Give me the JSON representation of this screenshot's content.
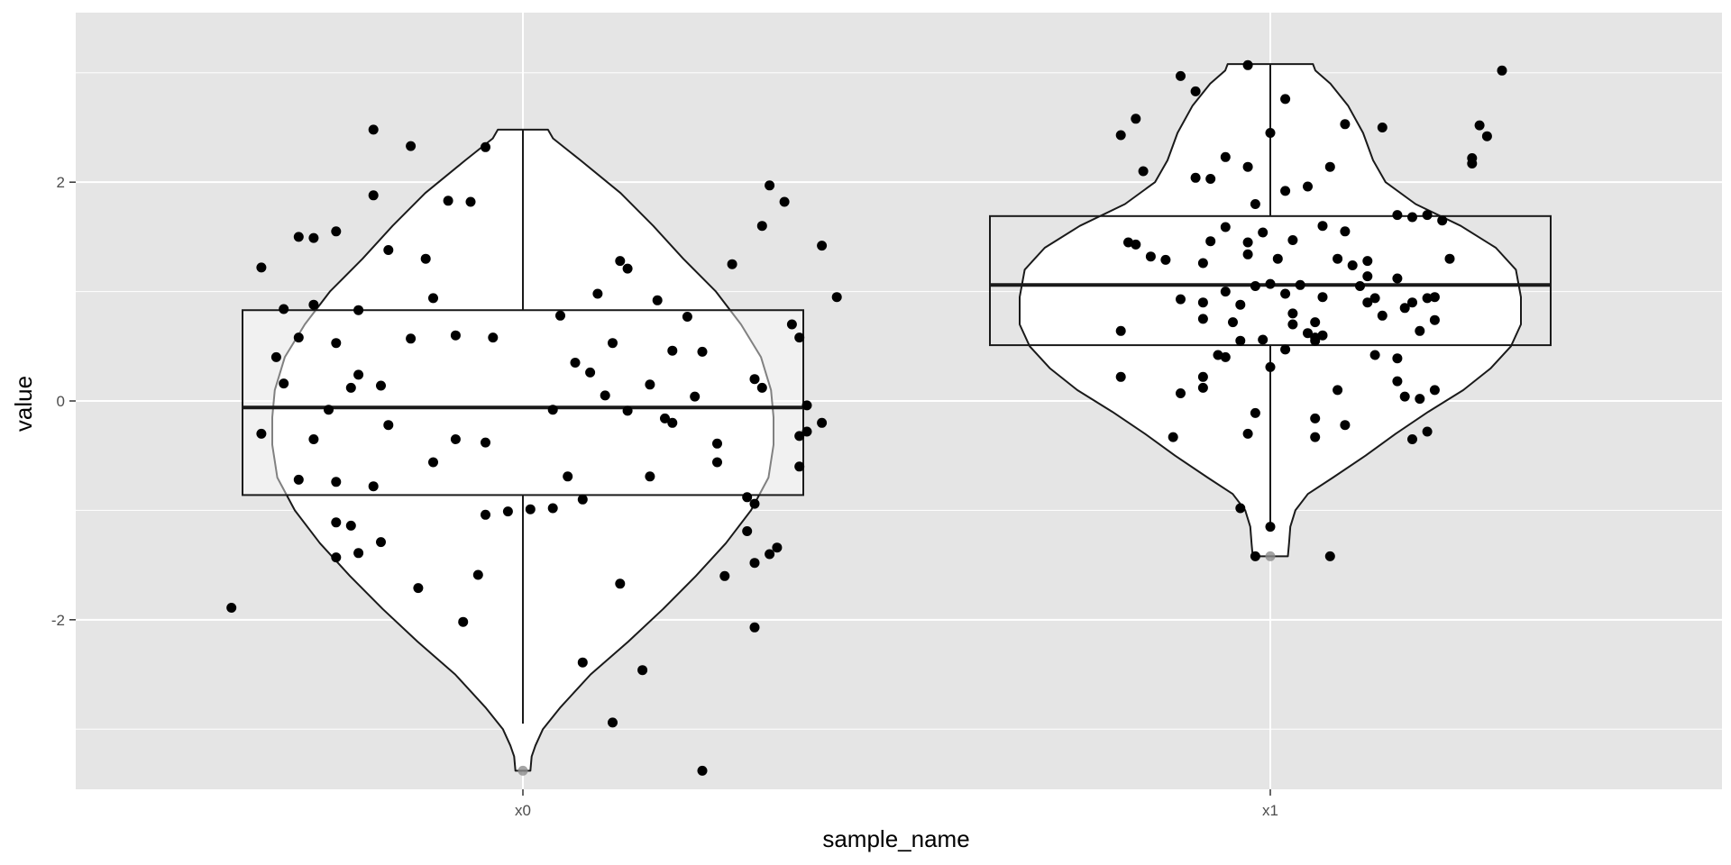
{
  "chart_data": {
    "type": "violin",
    "xlabel": "sample_name",
    "ylabel": "value",
    "categories": [
      "x0",
      "x1"
    ],
    "ylim": [
      -3.55,
      3.55
    ],
    "yticks": [
      -2,
      0,
      2
    ],
    "ytick_labels": [
      "-2",
      "0",
      "2"
    ],
    "grid": true,
    "colors": {
      "panel_bg": "#e5e5e5",
      "grid": "#ffffff",
      "violin_fill": "#ffffff",
      "outline": "#1a1a1a",
      "points": "#000000",
      "box_fill_x0": "rgba(255,255,255,0.45)"
    },
    "groups": [
      {
        "name": "x0",
        "box": {
          "min": -2.95,
          "q1": -0.86,
          "median": -0.06,
          "q3": 0.83,
          "max": 2.48
        },
        "outliers": [
          -3.38
        ],
        "violin_profile": [
          [
            -3.38,
            0.03
          ],
          [
            -3.25,
            0.035
          ],
          [
            -3.15,
            0.05
          ],
          [
            -3.0,
            0.08
          ],
          [
            -2.8,
            0.15
          ],
          [
            -2.5,
            0.27
          ],
          [
            -2.2,
            0.42
          ],
          [
            -1.9,
            0.56
          ],
          [
            -1.6,
            0.69
          ],
          [
            -1.3,
            0.81
          ],
          [
            -1.0,
            0.91
          ],
          [
            -0.7,
            0.98
          ],
          [
            -0.4,
            1.0
          ],
          [
            -0.15,
            1.0
          ],
          [
            0.1,
            0.99
          ],
          [
            0.4,
            0.95
          ],
          [
            0.7,
            0.87
          ],
          [
            1.0,
            0.77
          ],
          [
            1.3,
            0.64
          ],
          [
            1.6,
            0.52
          ],
          [
            1.9,
            0.39
          ],
          [
            2.2,
            0.23
          ],
          [
            2.4,
            0.12
          ],
          [
            2.48,
            0.1
          ]
        ],
        "points": [
          [
            -0.2,
            2.48
          ],
          [
            -0.15,
            2.33
          ],
          [
            -0.05,
            2.32
          ],
          [
            -0.1,
            1.83
          ],
          [
            -0.07,
            1.82
          ],
          [
            -0.2,
            1.88
          ],
          [
            -0.3,
            1.5
          ],
          [
            -0.35,
            1.22
          ],
          [
            -0.25,
            1.55
          ],
          [
            -0.18,
            1.38
          ],
          [
            -0.13,
            1.3
          ],
          [
            -0.32,
            0.84
          ],
          [
            -0.28,
            0.88
          ],
          [
            -0.22,
            0.83
          ],
          [
            -0.12,
            0.94
          ],
          [
            -0.3,
            0.58
          ],
          [
            -0.25,
            0.53
          ],
          [
            -0.33,
            0.4
          ],
          [
            -0.22,
            0.24
          ],
          [
            -0.32,
            0.16
          ],
          [
            -0.23,
            0.12
          ],
          [
            -0.09,
            0.6
          ],
          [
            -0.04,
            0.58
          ],
          [
            0.05,
            0.78
          ],
          [
            0.1,
            0.98
          ],
          [
            0.13,
            1.28
          ],
          [
            0.14,
            1.21
          ],
          [
            0.18,
            0.92
          ],
          [
            0.22,
            0.77
          ],
          [
            0.2,
            0.46
          ],
          [
            0.12,
            0.53
          ],
          [
            0.07,
            0.35
          ],
          [
            0.09,
            0.26
          ],
          [
            0.11,
            0.05
          ],
          [
            0.17,
            0.15
          ],
          [
            0.14,
            -0.09
          ],
          [
            0.19,
            -0.16
          ],
          [
            0.2,
            -0.2
          ],
          [
            0.23,
            0.04
          ],
          [
            0.24,
            0.45
          ],
          [
            0.28,
            1.25
          ],
          [
            0.32,
            1.6
          ],
          [
            0.33,
            1.97
          ],
          [
            0.35,
            1.82
          ],
          [
            0.4,
            1.42
          ],
          [
            0.42,
            0.95
          ],
          [
            0.36,
            0.7
          ],
          [
            0.37,
            0.58
          ],
          [
            0.31,
            0.2
          ],
          [
            0.32,
            0.12
          ],
          [
            0.38,
            -0.04
          ],
          [
            0.4,
            -0.2
          ],
          [
            0.38,
            -0.28
          ],
          [
            0.37,
            -0.32
          ],
          [
            0.37,
            -0.6
          ],
          [
            0.26,
            -0.56
          ],
          [
            0.3,
            -0.88
          ],
          [
            0.31,
            -0.94
          ],
          [
            0.34,
            -1.34
          ],
          [
            0.31,
            -1.48
          ],
          [
            0.3,
            -1.19
          ],
          [
            0.26,
            -0.39
          ],
          [
            0.17,
            -0.69
          ],
          [
            0.06,
            -0.69
          ],
          [
            0.08,
            -0.9
          ],
          [
            0.04,
            -0.98
          ],
          [
            0.01,
            -0.99
          ],
          [
            -0.02,
            -1.01
          ],
          [
            -0.05,
            -1.04
          ],
          [
            -0.12,
            -0.56
          ],
          [
            -0.18,
            -0.22
          ],
          [
            -0.28,
            -0.35
          ],
          [
            -0.35,
            -0.3
          ],
          [
            -0.3,
            -0.72
          ],
          [
            -0.25,
            -0.74
          ],
          [
            -0.2,
            -0.78
          ],
          [
            -0.25,
            -1.11
          ],
          [
            -0.23,
            -1.14
          ],
          [
            -0.19,
            -1.29
          ],
          [
            -0.22,
            -1.39
          ],
          [
            -0.25,
            -1.43
          ],
          [
            -0.14,
            -1.71
          ],
          [
            -0.06,
            -1.59
          ],
          [
            -0.08,
            -2.02
          ],
          [
            0.08,
            -2.39
          ],
          [
            0.16,
            -2.46
          ],
          [
            0.12,
            -2.94
          ],
          [
            0.24,
            -3.38
          ],
          [
            0.31,
            -2.07
          ],
          [
            -0.39,
            -1.89
          ],
          [
            0.13,
            -1.67
          ],
          [
            -0.05,
            -0.38
          ],
          [
            -0.09,
            -0.35
          ],
          [
            0.04,
            -0.08
          ],
          [
            -0.26,
            -0.08
          ],
          [
            -0.19,
            0.14
          ],
          [
            -0.15,
            0.57
          ],
          [
            -0.28,
            1.49
          ],
          [
            0.33,
            -1.4
          ],
          [
            0.27,
            -1.6
          ]
        ]
      },
      {
        "name": "x1",
        "box": {
          "min": -1.12,
          "q1": 0.51,
          "median": 1.06,
          "q3": 1.69,
          "max": 3.08
        },
        "outliers": [
          -1.42
        ],
        "violin_profile": [
          [
            -1.42,
            0.07
          ],
          [
            -1.3,
            0.075
          ],
          [
            -1.15,
            0.08
          ],
          [
            -1.0,
            0.1
          ],
          [
            -0.85,
            0.15
          ],
          [
            -0.7,
            0.25
          ],
          [
            -0.5,
            0.38
          ],
          [
            -0.3,
            0.5
          ],
          [
            -0.1,
            0.63
          ],
          [
            0.1,
            0.77
          ],
          [
            0.3,
            0.88
          ],
          [
            0.5,
            0.96
          ],
          [
            0.7,
            1.0
          ],
          [
            0.95,
            1.0
          ],
          [
            1.2,
            0.98
          ],
          [
            1.4,
            0.9
          ],
          [
            1.6,
            0.76
          ],
          [
            1.8,
            0.58
          ],
          [
            2.0,
            0.46
          ],
          [
            2.2,
            0.41
          ],
          [
            2.45,
            0.37
          ],
          [
            2.7,
            0.31
          ],
          [
            2.9,
            0.24
          ],
          [
            3.02,
            0.18
          ],
          [
            3.08,
            0.17
          ]
        ],
        "points": [
          [
            -0.12,
            2.97
          ],
          [
            -0.03,
            3.07
          ],
          [
            0.31,
            3.02
          ],
          [
            -0.1,
            2.83
          ],
          [
            -0.18,
            2.58
          ],
          [
            -0.2,
            2.43
          ],
          [
            0.0,
            2.45
          ],
          [
            0.02,
            2.76
          ],
          [
            0.1,
            2.53
          ],
          [
            0.15,
            2.5
          ],
          [
            0.28,
            2.52
          ],
          [
            0.29,
            2.42
          ],
          [
            0.27,
            2.17
          ],
          [
            0.27,
            2.22
          ],
          [
            -0.06,
            2.23
          ],
          [
            -0.1,
            2.04
          ],
          [
            -0.08,
            2.03
          ],
          [
            -0.03,
            2.14
          ],
          [
            0.08,
            2.14
          ],
          [
            0.05,
            1.96
          ],
          [
            -0.17,
            2.1
          ],
          [
            0.02,
            1.92
          ],
          [
            -0.02,
            1.8
          ],
          [
            0.07,
            1.6
          ],
          [
            0.1,
            1.55
          ],
          [
            0.03,
            1.47
          ],
          [
            -0.01,
            1.54
          ],
          [
            -0.06,
            1.59
          ],
          [
            -0.03,
            1.45
          ],
          [
            -0.08,
            1.46
          ],
          [
            -0.18,
            1.43
          ],
          [
            -0.19,
            1.45
          ],
          [
            -0.14,
            1.29
          ],
          [
            -0.16,
            1.32
          ],
          [
            -0.09,
            1.26
          ],
          [
            -0.03,
            1.34
          ],
          [
            0.01,
            1.3
          ],
          [
            0.04,
            1.06
          ],
          [
            0.0,
            1.07
          ],
          [
            -0.02,
            1.05
          ],
          [
            -0.06,
            1.0
          ],
          [
            -0.04,
            0.88
          ],
          [
            -0.12,
            0.93
          ],
          [
            -0.09,
            0.75
          ],
          [
            -0.05,
            0.72
          ],
          [
            -0.09,
            0.9
          ],
          [
            0.02,
            0.98
          ],
          [
            0.09,
            1.3
          ],
          [
            0.11,
            1.24
          ],
          [
            0.13,
            1.28
          ],
          [
            0.13,
            1.14
          ],
          [
            0.12,
            1.05
          ],
          [
            0.13,
            0.9
          ],
          [
            0.07,
            0.95
          ],
          [
            0.03,
            0.8
          ],
          [
            0.06,
            0.72
          ],
          [
            0.07,
            0.6
          ],
          [
            0.05,
            0.62
          ],
          [
            0.06,
            0.58
          ],
          [
            0.06,
            0.55
          ],
          [
            0.03,
            0.7
          ],
          [
            -0.01,
            0.56
          ],
          [
            -0.04,
            0.55
          ],
          [
            -0.07,
            0.42
          ],
          [
            -0.06,
            0.4
          ],
          [
            -0.09,
            0.22
          ],
          [
            -0.09,
            0.12
          ],
          [
            -0.2,
            0.64
          ],
          [
            -0.2,
            0.22
          ],
          [
            -0.12,
            0.07
          ],
          [
            -0.13,
            -0.33
          ],
          [
            -0.03,
            -0.3
          ],
          [
            -0.02,
            -0.11
          ],
          [
            0.06,
            -0.16
          ],
          [
            0.06,
            -0.33
          ],
          [
            0.1,
            -0.22
          ],
          [
            0.17,
            0.39
          ],
          [
            0.17,
            0.18
          ],
          [
            0.09,
            0.1
          ],
          [
            0.02,
            0.47
          ],
          [
            0.0,
            0.31
          ],
          [
            0.15,
            0.78
          ],
          [
            0.14,
            0.94
          ],
          [
            0.18,
            0.85
          ],
          [
            0.17,
            1.12
          ],
          [
            0.19,
            0.9
          ],
          [
            0.21,
            0.94
          ],
          [
            0.22,
            0.95
          ],
          [
            0.22,
            0.74
          ],
          [
            0.2,
            0.64
          ],
          [
            0.24,
            1.3
          ],
          [
            0.23,
            1.65
          ],
          [
            0.17,
            1.7
          ],
          [
            0.19,
            1.68
          ],
          [
            0.21,
            1.7
          ],
          [
            0.2,
            0.02
          ],
          [
            0.22,
            0.1
          ],
          [
            0.21,
            -0.28
          ],
          [
            0.19,
            -0.35
          ],
          [
            0.08,
            -1.42
          ],
          [
            -0.04,
            -0.98
          ],
          [
            0.0,
            -1.15
          ],
          [
            0.18,
            0.04
          ],
          [
            0.14,
            0.42
          ],
          [
            -0.02,
            -1.42
          ]
        ]
      }
    ]
  }
}
